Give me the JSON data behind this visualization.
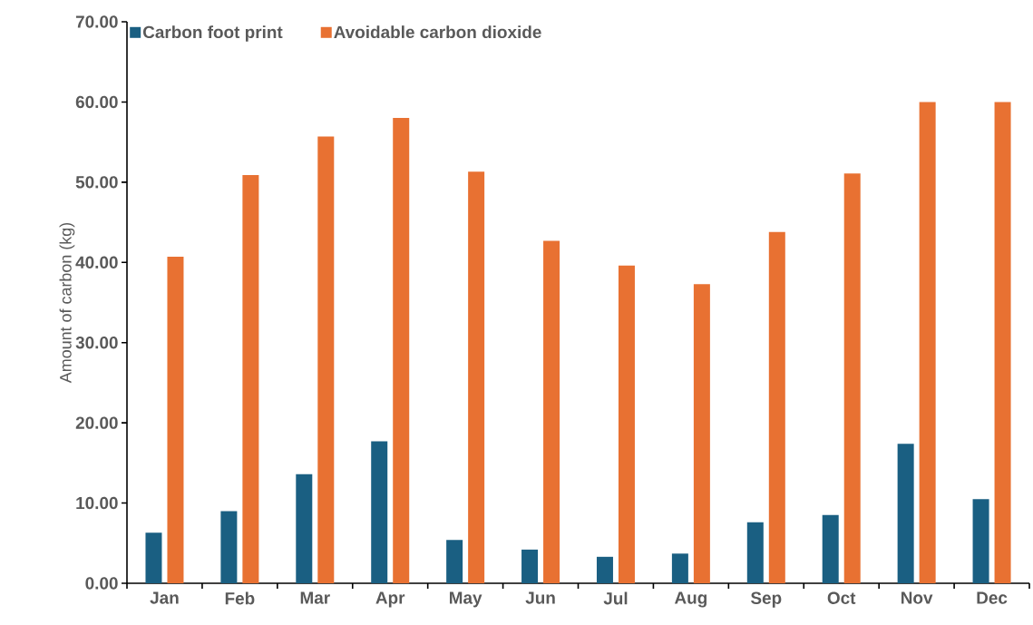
{
  "chart_data": {
    "type": "bar",
    "ylabel": "Amount of carbon (kg)",
    "categories": [
      "Jan",
      "Feb",
      "Mar",
      "Apr",
      "May",
      "Jun",
      "Jul",
      "Aug",
      "Sep",
      "Oct",
      "Nov",
      "Dec"
    ],
    "series": [
      {
        "name": "Carbon foot print",
        "color": "#1a5f82",
        "values": [
          6.3,
          9.0,
          13.6,
          17.7,
          5.4,
          4.2,
          3.3,
          3.7,
          7.6,
          8.5,
          17.4,
          10.5
        ]
      },
      {
        "name": "Avoidable carbon dioxide",
        "color": "#e87132",
        "values": [
          40.7,
          50.9,
          55.7,
          58.0,
          51.3,
          42.7,
          39.6,
          37.3,
          43.8,
          51.1,
          60.0,
          60.0
        ]
      }
    ],
    "ylim": [
      0,
      70
    ],
    "yticks": [
      {
        "value": 0,
        "label": "0.00"
      },
      {
        "value": 10,
        "label": "10.00"
      },
      {
        "value": 20,
        "label": "20.00"
      },
      {
        "value": 30,
        "label": "30.00"
      },
      {
        "value": 40,
        "label": "40.00"
      },
      {
        "value": 50,
        "label": "50.00"
      },
      {
        "value": 60,
        "label": "60.00"
      },
      {
        "value": 70,
        "label": "70.00"
      }
    ],
    "grid": false,
    "legend": "top left"
  }
}
